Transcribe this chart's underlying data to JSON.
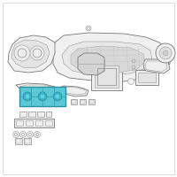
{
  "background_color": "#ffffff",
  "border_color": "#d0d0d0",
  "highlight_color": "#5bc8d8",
  "highlight_edge": "#2a90a0",
  "line_color": "#999999",
  "line_color2": "#777777",
  "line_color3": "#bbbbbb",
  "figsize": [
    2.0,
    2.0
  ],
  "dpi": 100,
  "lw_main": 0.6,
  "lw_thin": 0.4,
  "lw_thick": 0.8
}
